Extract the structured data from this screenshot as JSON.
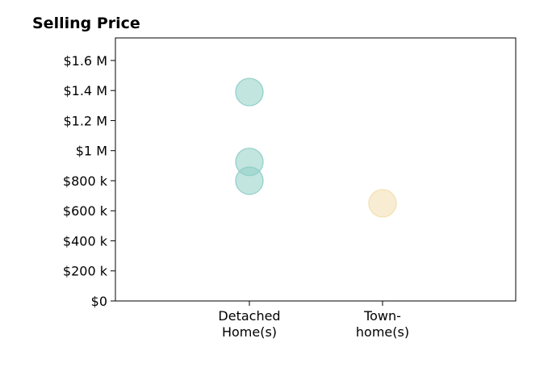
{
  "chart_data": {
    "type": "scatter",
    "title": "Selling Price",
    "xlabel": "",
    "ylabel": "",
    "categories": [
      [
        "Detached",
        "Home(s)"
      ],
      [
        "Town-",
        "home(s)"
      ]
    ],
    "points": [
      {
        "category": 0,
        "value": 1390000
      },
      {
        "category": 0,
        "value": 925000
      },
      {
        "category": 0,
        "value": 800000
      },
      {
        "category": 1,
        "value": 650000
      }
    ],
    "point_colors": [
      "#8fd0c7",
      "#8fd0c7",
      "#8fd0c7",
      "#f3dfae"
    ],
    "ylim": [
      0,
      1750000
    ],
    "y_ticks": [
      {
        "value": 0,
        "label": "$0"
      },
      {
        "value": 200000,
        "label": "$200 k"
      },
      {
        "value": 400000,
        "label": "$400 k"
      },
      {
        "value": 600000,
        "label": "$600 k"
      },
      {
        "value": 800000,
        "label": "$800 k"
      },
      {
        "value": 1000000,
        "label": "$1 M"
      },
      {
        "value": 1200000,
        "label": "$1.2 M"
      },
      {
        "value": 1400000,
        "label": "$1.4 M"
      },
      {
        "value": 1600000,
        "label": "$1.6 M"
      }
    ],
    "grid": false,
    "legend": "none"
  }
}
